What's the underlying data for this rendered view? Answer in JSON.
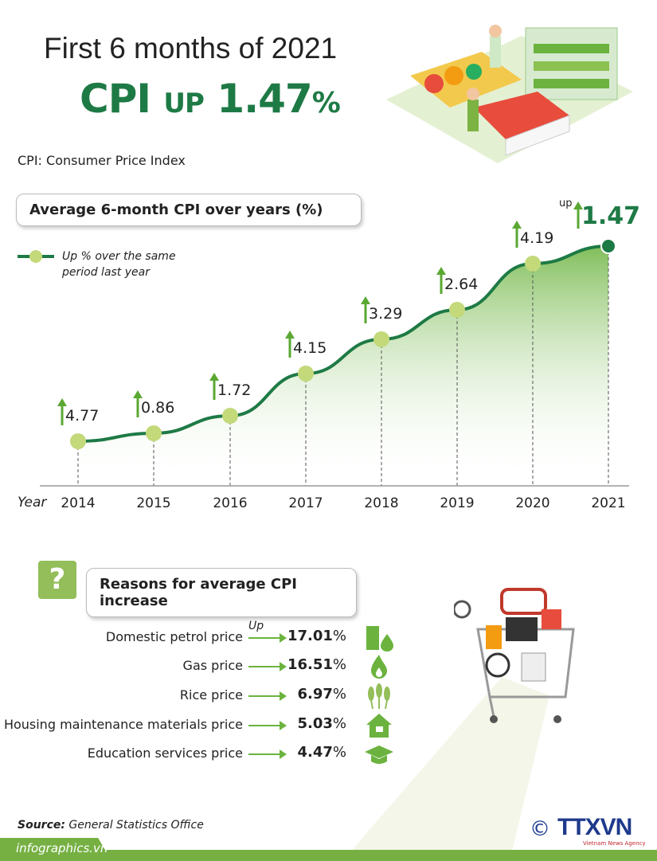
{
  "header": {
    "title": "First 6 months of 2021",
    "headline_main": "CPI",
    "headline_up": "UP",
    "headline_value": "1.47",
    "headline_pct": "%",
    "definition": "CPI: Consumer Price Index"
  },
  "chart_data": {
    "type": "line",
    "title": "Average 6-month CPI  over years (%)",
    "xlabel": "Year",
    "categories": [
      "2014",
      "2015",
      "2016",
      "2017",
      "2018",
      "2019",
      "2020",
      "2021"
    ],
    "series": [
      {
        "name": "Up % over the same period last year",
        "values": [
          4.77,
          0.86,
          1.72,
          4.15,
          3.29,
          2.64,
          4.19,
          1.47
        ]
      }
    ],
    "data_labels": [
      "4.77",
      "0.86",
      "1.72",
      "4.15",
      "3.29",
      "2.64",
      "4.19",
      "1.47"
    ],
    "highlight_prefix": "up",
    "legend_line1": "Up % over the same",
    "legend_line2": "period last year",
    "legend_position": "top-left",
    "colors": {
      "line": "#1e7a45",
      "marker": "#c3d97a",
      "arrow": "#5aa832",
      "highlight": "#1e7a45"
    }
  },
  "reasons": {
    "title": "Reasons for average CPI increase",
    "question_mark": "?",
    "up_label": "Up",
    "items": [
      {
        "label": "Domestic petrol price",
        "value": "17.01",
        "unit": "%",
        "icon": "oil-barrel-icon"
      },
      {
        "label": "Gas price",
        "value": "16.51",
        "unit": "%",
        "icon": "flame-icon"
      },
      {
        "label": "Rice price",
        "value": "6.97",
        "unit": "%",
        "icon": "rice-icon"
      },
      {
        "label": "Housing maintenance materials price",
        "value": "5.03",
        "unit": "%",
        "icon": "house-icon"
      },
      {
        "label": "Education services price",
        "value": "4.47",
        "unit": "%",
        "icon": "graduation-cap-icon"
      }
    ]
  },
  "footer": {
    "source_label": "Source:",
    "source": "General Statistics Office",
    "site": "infographics.vn",
    "copyright": "©",
    "logo": "TTXVN",
    "agency": "Vietnam News Agency"
  },
  "colors": {
    "brand_green": "#1e7a45",
    "light_green": "#76b043"
  }
}
